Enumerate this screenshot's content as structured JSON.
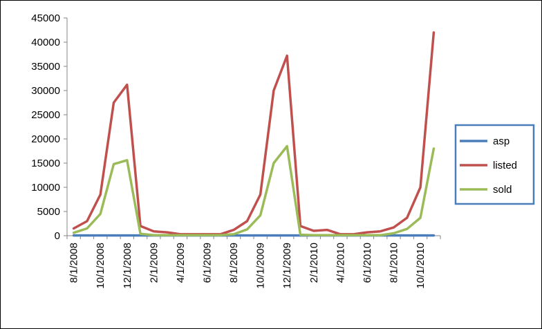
{
  "chart_data": {
    "type": "line",
    "title": "",
    "xlabel": "",
    "ylabel": "",
    "ylim": [
      0,
      45000
    ],
    "yticks": [
      0,
      5000,
      10000,
      15000,
      20000,
      25000,
      30000,
      35000,
      40000,
      45000
    ],
    "grid": false,
    "legend_position": "right",
    "x": [
      "8/1/2008",
      "9/1/2008",
      "10/1/2008",
      "11/1/2008",
      "12/1/2008",
      "1/1/2009",
      "2/1/2009",
      "3/1/2009",
      "4/1/2009",
      "5/1/2009",
      "6/1/2009",
      "7/1/2009",
      "8/1/2009",
      "9/1/2009",
      "10/1/2009",
      "11/1/2009",
      "12/1/2009",
      "1/1/2010",
      "2/1/2010",
      "3/1/2010",
      "4/1/2010",
      "5/1/2010",
      "6/1/2010",
      "7/1/2010",
      "8/1/2010",
      "9/1/2010",
      "10/1/2010",
      "11/1/2010"
    ],
    "x_tick_labels": [
      "8/1/2008",
      "10/1/2008",
      "12/1/2008",
      "2/1/2009",
      "4/1/2009",
      "6/1/2009",
      "8/1/2009",
      "10/1/2009",
      "12/1/2009",
      "2/1/2010",
      "4/1/2010",
      "6/1/2010",
      "8/1/2010",
      "10/1/2010"
    ],
    "series": [
      {
        "name": "asp",
        "color": "#4a7ebb",
        "values": [
          50,
          50,
          50,
          50,
          50,
          50,
          50,
          50,
          50,
          50,
          50,
          50,
          50,
          50,
          50,
          50,
          50,
          50,
          50,
          50,
          50,
          50,
          50,
          50,
          50,
          50,
          50,
          50
        ]
      },
      {
        "name": "listed",
        "color": "#c0504d",
        "values": [
          1500,
          3000,
          8500,
          27500,
          31200,
          2000,
          900,
          700,
          300,
          300,
          300,
          300,
          1200,
          3000,
          8500,
          30000,
          37200,
          2000,
          1000,
          1200,
          300,
          300,
          700,
          900,
          1700,
          3700,
          10000,
          42000
        ]
      },
      {
        "name": "sold",
        "color": "#9bbb59",
        "values": [
          600,
          1500,
          4500,
          14800,
          15600,
          400,
          100,
          100,
          100,
          100,
          100,
          100,
          300,
          1300,
          4200,
          15000,
          18500,
          200,
          100,
          100,
          100,
          100,
          100,
          100,
          500,
          1400,
          3700,
          18000
        ]
      }
    ]
  }
}
